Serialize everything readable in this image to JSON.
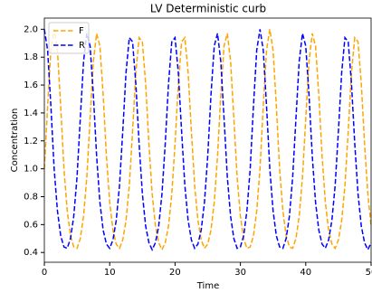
{
  "chart_data": {
    "type": "line",
    "title": "LV Deterministic curb",
    "xlabel": "Time",
    "ylabel": "Concentration",
    "x": [
      0,
      0.5,
      1,
      1.5,
      2,
      2.5,
      3,
      3.5,
      4,
      4.5,
      5,
      5.5,
      6,
      6.5,
      7,
      7.5,
      8,
      8.5,
      9,
      9.5,
      10,
      10.5,
      11,
      11.5,
      12,
      12.5,
      13,
      13.5,
      14,
      14.5,
      15,
      15.5,
      16,
      16.5,
      17,
      17.5,
      18,
      18.5,
      19,
      19.5,
      20,
      20.5,
      21,
      21.5,
      22,
      22.5,
      23,
      23.5,
      24,
      24.5,
      25,
      25.5,
      26,
      26.5,
      27,
      27.5,
      28,
      28.5,
      29,
      29.5,
      30,
      30.5,
      31,
      31.5,
      32,
      32.5,
      33,
      33.5,
      34,
      34.5,
      35,
      35.5,
      36,
      36.5,
      37,
      37.5,
      38,
      38.5,
      39,
      39.5,
      40,
      40.5,
      41,
      41.5,
      42,
      42.5,
      43,
      43.5,
      44,
      44.5,
      45,
      45.5,
      46,
      46.5,
      47,
      47.5,
      48,
      48.5,
      49,
      49.5,
      50
    ],
    "series": [
      {
        "name": "F",
        "color": "#ffa500",
        "values": [
          1.0,
          1.45,
          1.85,
          2.0,
          1.85,
          1.45,
          1.0,
          0.7,
          0.52,
          0.44,
          0.43,
          0.5,
          0.66,
          0.94,
          1.36,
          1.77,
          1.97,
          1.88,
          1.53,
          1.09,
          0.76,
          0.56,
          0.46,
          0.43,
          0.49,
          0.63,
          0.88,
          1.27,
          1.69,
          1.94,
          1.91,
          1.61,
          1.18,
          0.82,
          0.59,
          0.47,
          0.42,
          0.47,
          0.59,
          0.82,
          1.18,
          1.61,
          1.91,
          1.94,
          1.69,
          1.27,
          0.88,
          0.63,
          0.49,
          0.43,
          0.46,
          0.56,
          0.76,
          1.09,
          1.53,
          1.88,
          1.97,
          1.77,
          1.36,
          0.94,
          0.66,
          0.5,
          0.43,
          0.44,
          0.52,
          0.7,
          1.0,
          1.45,
          1.85,
          2.0,
          1.85,
          1.45,
          1.0,
          0.7,
          0.52,
          0.44,
          0.43,
          0.5,
          0.66,
          0.94,
          1.36,
          1.77,
          1.97,
          1.88,
          1.53,
          1.09,
          0.76,
          0.56,
          0.46,
          0.43,
          0.49,
          0.63,
          0.88,
          1.27,
          1.69,
          1.94,
          1.91,
          1.61,
          1.18,
          0.82,
          0.59
        ]
      },
      {
        "name": "R",
        "color": "#0000ff",
        "values": [
          2.0,
          1.85,
          1.45,
          1.0,
          0.7,
          0.52,
          0.44,
          0.43,
          0.5,
          0.66,
          0.94,
          1.36,
          1.77,
          1.97,
          1.88,
          1.53,
          1.09,
          0.76,
          0.56,
          0.46,
          0.43,
          0.49,
          0.63,
          0.88,
          1.27,
          1.69,
          1.94,
          1.91,
          1.61,
          1.18,
          0.82,
          0.59,
          0.47,
          0.42,
          0.47,
          0.59,
          0.82,
          1.18,
          1.61,
          1.91,
          1.94,
          1.69,
          1.27,
          0.88,
          0.63,
          0.49,
          0.43,
          0.46,
          0.56,
          0.76,
          1.09,
          1.53,
          1.88,
          1.97,
          1.77,
          1.36,
          0.94,
          0.66,
          0.5,
          0.43,
          0.44,
          0.52,
          0.7,
          1.0,
          1.45,
          1.85,
          2.0,
          1.85,
          1.45,
          1.0,
          0.7,
          0.52,
          0.44,
          0.43,
          0.5,
          0.66,
          0.94,
          1.36,
          1.77,
          1.97,
          1.88,
          1.53,
          1.09,
          0.76,
          0.56,
          0.46,
          0.43,
          0.49,
          0.63,
          0.88,
          1.27,
          1.69,
          1.94,
          1.91,
          1.61,
          1.18,
          0.82,
          0.59,
          0.47,
          0.42,
          0.47
        ]
      }
    ],
    "xlim": [
      0,
      50
    ],
    "xticks": [
      0,
      10,
      20,
      30,
      40,
      50
    ],
    "ylim": [
      0.33,
      2.08
    ],
    "yticks": [
      0.4,
      0.6,
      0.8,
      {
        "value": 1,
        "label": "1.0"
      },
      1.2,
      1.4,
      1.6,
      1.8,
      {
        "value": 2,
        "label": "2.0"
      }
    ],
    "legend": "upper left",
    "grid": false
  }
}
